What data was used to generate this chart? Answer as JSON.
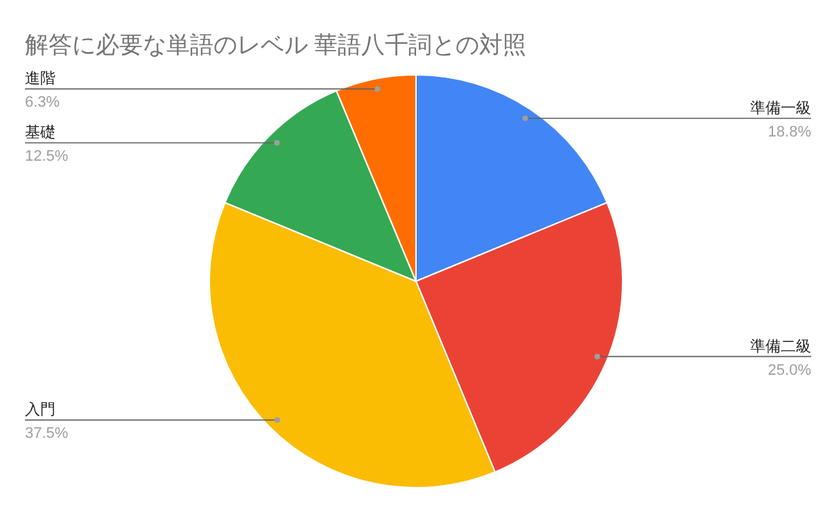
{
  "chart_data": {
    "type": "pie",
    "title": "解答に必要な単語のレベル 華語八千詞との対照",
    "categories": [
      "準備一級",
      "準備二級",
      "入門",
      "基礎",
      "進階"
    ],
    "values": [
      18.8,
      25.0,
      37.5,
      12.5,
      6.3
    ],
    "value_labels": [
      "18.8%",
      "25.0%",
      "37.5%",
      "12.5%",
      "6.3%"
    ],
    "colors": [
      "#4285f4",
      "#ea4335",
      "#fbbc04",
      "#34a853",
      "#ff6d01"
    ]
  }
}
